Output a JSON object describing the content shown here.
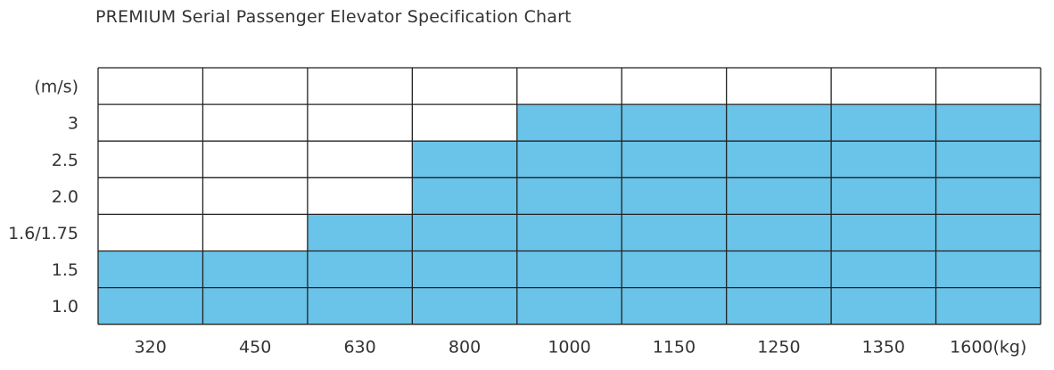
{
  "title": "PREMIUM Serial Passenger Elevator Specification Chart",
  "chart_data": {
    "type": "heatmap",
    "title": "PREMIUM Serial Passenger Elevator Specification Chart",
    "y_unit_label": "(m/s)",
    "x_categories": [
      "320",
      "450",
      "630",
      "800",
      "1000",
      "1150",
      "1250",
      "1350",
      "1600(kg)"
    ],
    "y_categories": [
      "3",
      "2.5",
      "2.0",
      "1.6/1.75",
      "1.5",
      "1.0"
    ],
    "available": [
      [
        0,
        0,
        0,
        0,
        1,
        1,
        1,
        1,
        1
      ],
      [
        0,
        0,
        0,
        1,
        1,
        1,
        1,
        1,
        1
      ],
      [
        0,
        0,
        0,
        1,
        1,
        1,
        1,
        1,
        1
      ],
      [
        0,
        0,
        1,
        1,
        1,
        1,
        1,
        1,
        1
      ],
      [
        1,
        1,
        1,
        1,
        1,
        1,
        1,
        1,
        1
      ],
      [
        1,
        1,
        1,
        1,
        1,
        1,
        1,
        1,
        1
      ]
    ],
    "colors": {
      "available": "#6ac3e8",
      "unavailable": "#ffffff",
      "grid": "#222222"
    }
  }
}
